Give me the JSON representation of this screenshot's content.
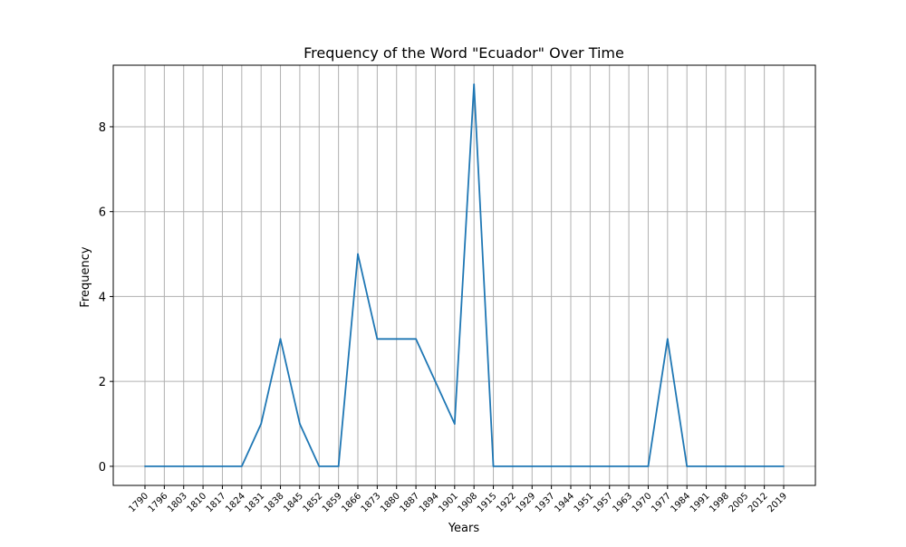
{
  "chart_data": {
    "type": "line",
    "title": "Frequency of the Word \"Ecuador\" Over Time",
    "xlabel": "Years",
    "ylabel": "Frequency",
    "x": [
      1790,
      1796,
      1803,
      1810,
      1817,
      1824,
      1831,
      1838,
      1845,
      1852,
      1859,
      1866,
      1873,
      1880,
      1887,
      1894,
      1901,
      1908,
      1915,
      1922,
      1929,
      1937,
      1944,
      1951,
      1957,
      1963,
      1970,
      1977,
      1984,
      1991,
      1998,
      2005,
      2012,
      2019
    ],
    "series": [
      {
        "values": [
          0,
          0,
          0,
          0,
          0,
          0,
          1,
          3,
          1,
          0,
          0,
          5,
          3,
          3,
          3,
          2,
          1,
          9,
          0,
          0,
          0,
          0,
          0,
          0,
          0,
          0,
          0,
          3,
          0,
          0,
          0,
          0,
          0,
          0
        ]
      }
    ],
    "yticks": [
      0,
      2,
      4,
      6,
      8
    ],
    "ylim": [
      -0.45,
      9.45
    ],
    "grid": true,
    "line_color": "#1f77b4",
    "grid_color": "#b0b0b0"
  }
}
